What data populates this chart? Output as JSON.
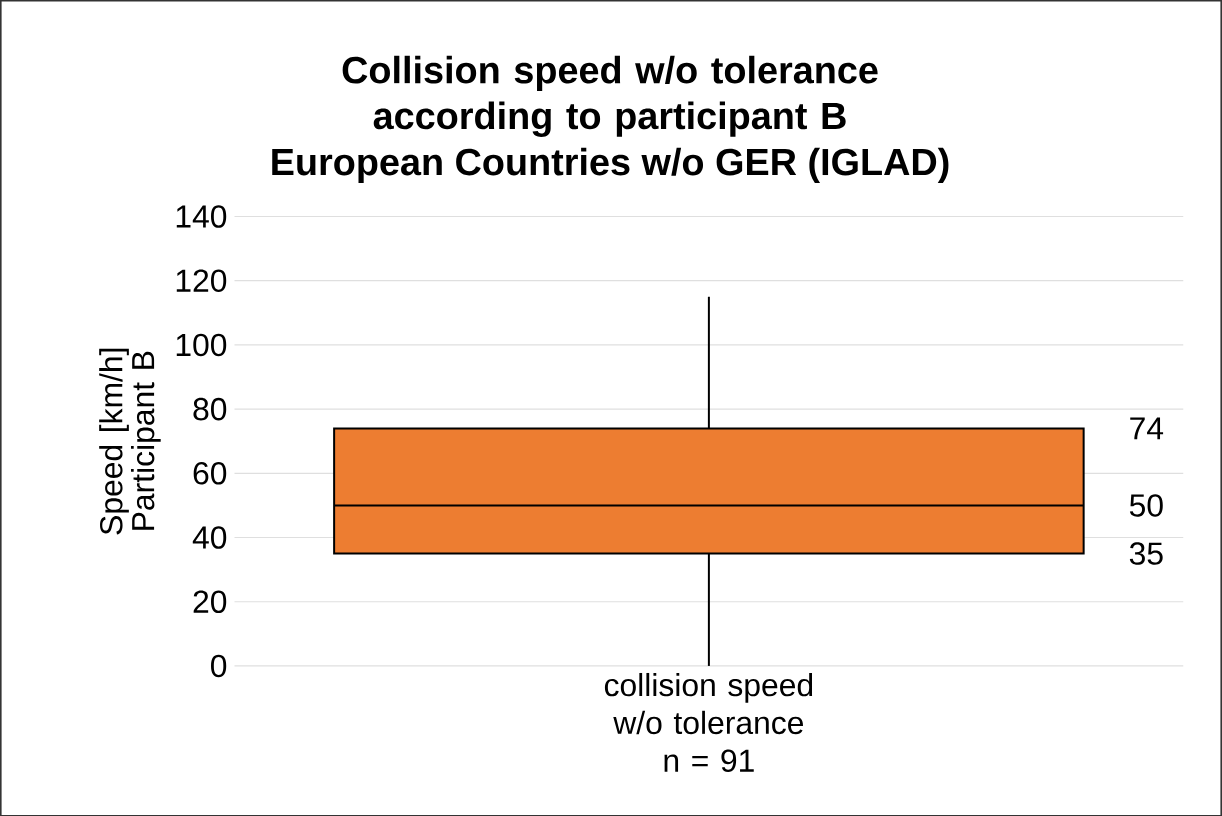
{
  "chart_data": {
    "type": "box",
    "title": "Collision speed w/o tolerance according to participant B",
    "subtitle": "European Countries w/o GER (IGLAD)",
    "ylabel": "Speed [km/h] Participant B",
    "categories": [
      "collision speed w/o tolerance n = 91"
    ],
    "series": [
      {
        "color": "#ed7d31",
        "boxes": [
          {
            "low": 0,
            "q1": 35,
            "median": 50,
            "q3": 74,
            "high": 115
          }
        ]
      }
    ],
    "annotations": [
      "74",
      "50",
      "35"
    ],
    "ylim": [
      0,
      140
    ],
    "yticks": [
      0,
      20,
      40,
      60,
      80,
      100,
      120,
      140
    ],
    "grid": "y"
  }
}
